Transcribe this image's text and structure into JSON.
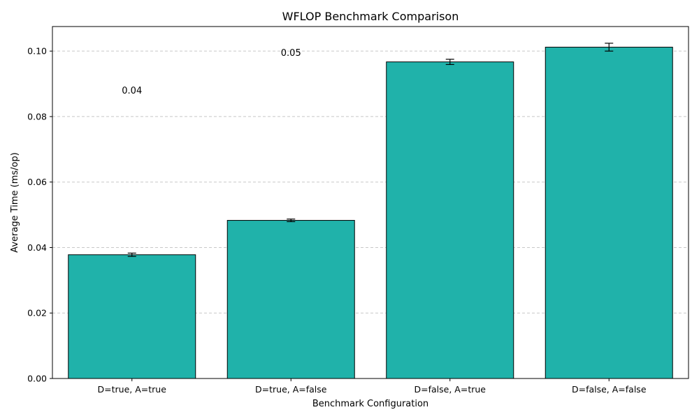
{
  "chart_data": {
    "type": "bar",
    "title": "WFLOP Benchmark Comparison",
    "xlabel": "Benchmark Configuration",
    "ylabel": "Average Time (ms/op)",
    "categories": [
      "D=true, A=true",
      "D=true, A=false",
      "D=false, A=true",
      "D=false, A=false"
    ],
    "values": [
      0.0378,
      0.0483,
      0.0967,
      0.1012
    ],
    "errors": [
      0.0005,
      0.0004,
      0.0008,
      0.0012
    ],
    "data_labels": [
      "0.04",
      "0.05",
      "",
      ""
    ],
    "data_label_values": [
      0.088,
      0.0995,
      null,
      null
    ],
    "ylim": [
      0,
      0.1075
    ],
    "yticks": [
      0.0,
      0.02,
      0.04,
      0.06,
      0.08,
      0.1
    ],
    "ytick_labels": [
      "0.00",
      "0.02",
      "0.04",
      "0.06",
      "0.08",
      "0.10"
    ],
    "grid": "y",
    "bar_color": "#20b2aa",
    "edge_color": "#000000"
  }
}
